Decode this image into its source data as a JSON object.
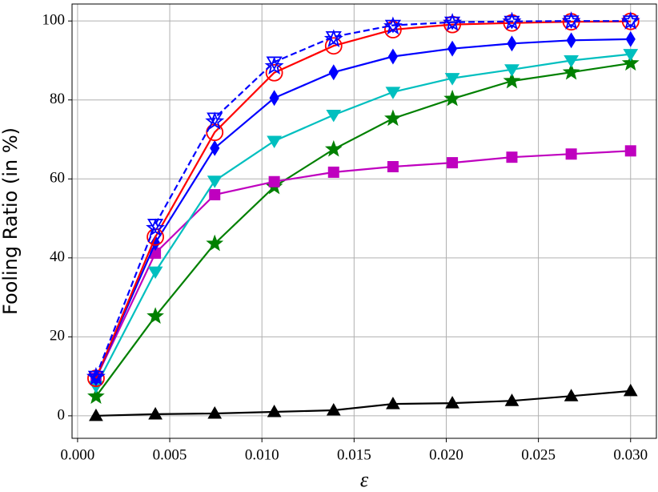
{
  "chart_data": {
    "type": "line",
    "y_label": "Fooling Ratio (in %)",
    "x_label": "ε",
    "x": [
      0.001,
      0.00422,
      0.00744,
      0.01067,
      0.01389,
      0.01711,
      0.02033,
      0.02356,
      0.02678,
      0.03
    ],
    "series": [
      {
        "color": "#000000",
        "marker": "^",
        "fill": true,
        "dashed": false,
        "line": true,
        "values": [
          0,
          0.4,
          0.6,
          1,
          1.4,
          3,
          3.2,
          3.8,
          5,
          6.3
        ]
      },
      {
        "color": "#008000",
        "marker": "*",
        "fill": true,
        "dashed": false,
        "line": true,
        "values": [
          4.9,
          25.2,
          43.6,
          58,
          67.5,
          75.3,
          80.3,
          84.8,
          87,
          89.3
        ]
      },
      {
        "color": "#bf00bf",
        "marker": "s",
        "fill": true,
        "dashed": false,
        "line": true,
        "values": [
          9.5,
          41.2,
          56,
          59.3,
          61.7,
          63.1,
          64.1,
          65.5,
          66.3,
          67.1
        ]
      },
      {
        "color": "#00bfbf",
        "marker": "v",
        "fill": true,
        "dashed": false,
        "line": true,
        "values": [
          7.5,
          36.5,
          59.5,
          69.6,
          76.2,
          82,
          85.5,
          87.7,
          90,
          91.6
        ]
      },
      {
        "color": "#0000ff",
        "marker": "d",
        "fill": true,
        "dashed": false,
        "line": true,
        "values": [
          9.5,
          43.8,
          67.8,
          80.5,
          87,
          91,
          93,
          94.3,
          95.1,
          95.4
        ]
      },
      {
        "color": "#ff0000",
        "marker": "o",
        "fill": false,
        "dashed": false,
        "line": true,
        "values": [
          9.5,
          45.3,
          71.8,
          86.9,
          93.7,
          97.8,
          99.1,
          99.5,
          99.8,
          99.9
        ]
      },
      {
        "color": "#0000ff",
        "marker": "v",
        "fill": false,
        "dashed": true,
        "line": true,
        "values": [
          10,
          48.5,
          75.4,
          89.6,
          96,
          98.9,
          99.7,
          99.9,
          100,
          100
        ]
      },
      {
        "color": "#0000ff",
        "marker": "*",
        "fill": false,
        "dashed": false,
        "line": false,
        "values": [
          9.8,
          47.5,
          74.5,
          88.5,
          95.4,
          98.6,
          99.5,
          99.8,
          99.9,
          99.9
        ]
      }
    ],
    "xlim": [
      -0.0003,
      0.0314
    ],
    "ylim": [
      -5.7,
      104.3
    ],
    "xticks": [
      {
        "value": 0,
        "label": "0.000"
      },
      {
        "value": 0.005,
        "label": "0.005"
      },
      {
        "value": 0.01,
        "label": "0.010"
      },
      {
        "value": 0.015,
        "label": "0.015"
      },
      {
        "value": 0.02,
        "label": "0.020"
      },
      {
        "value": 0.025,
        "label": "0.025"
      },
      {
        "value": 0.03,
        "label": "0.030"
      }
    ],
    "yticks": [
      0,
      20,
      40,
      60,
      80,
      100
    ],
    "grid": true
  }
}
